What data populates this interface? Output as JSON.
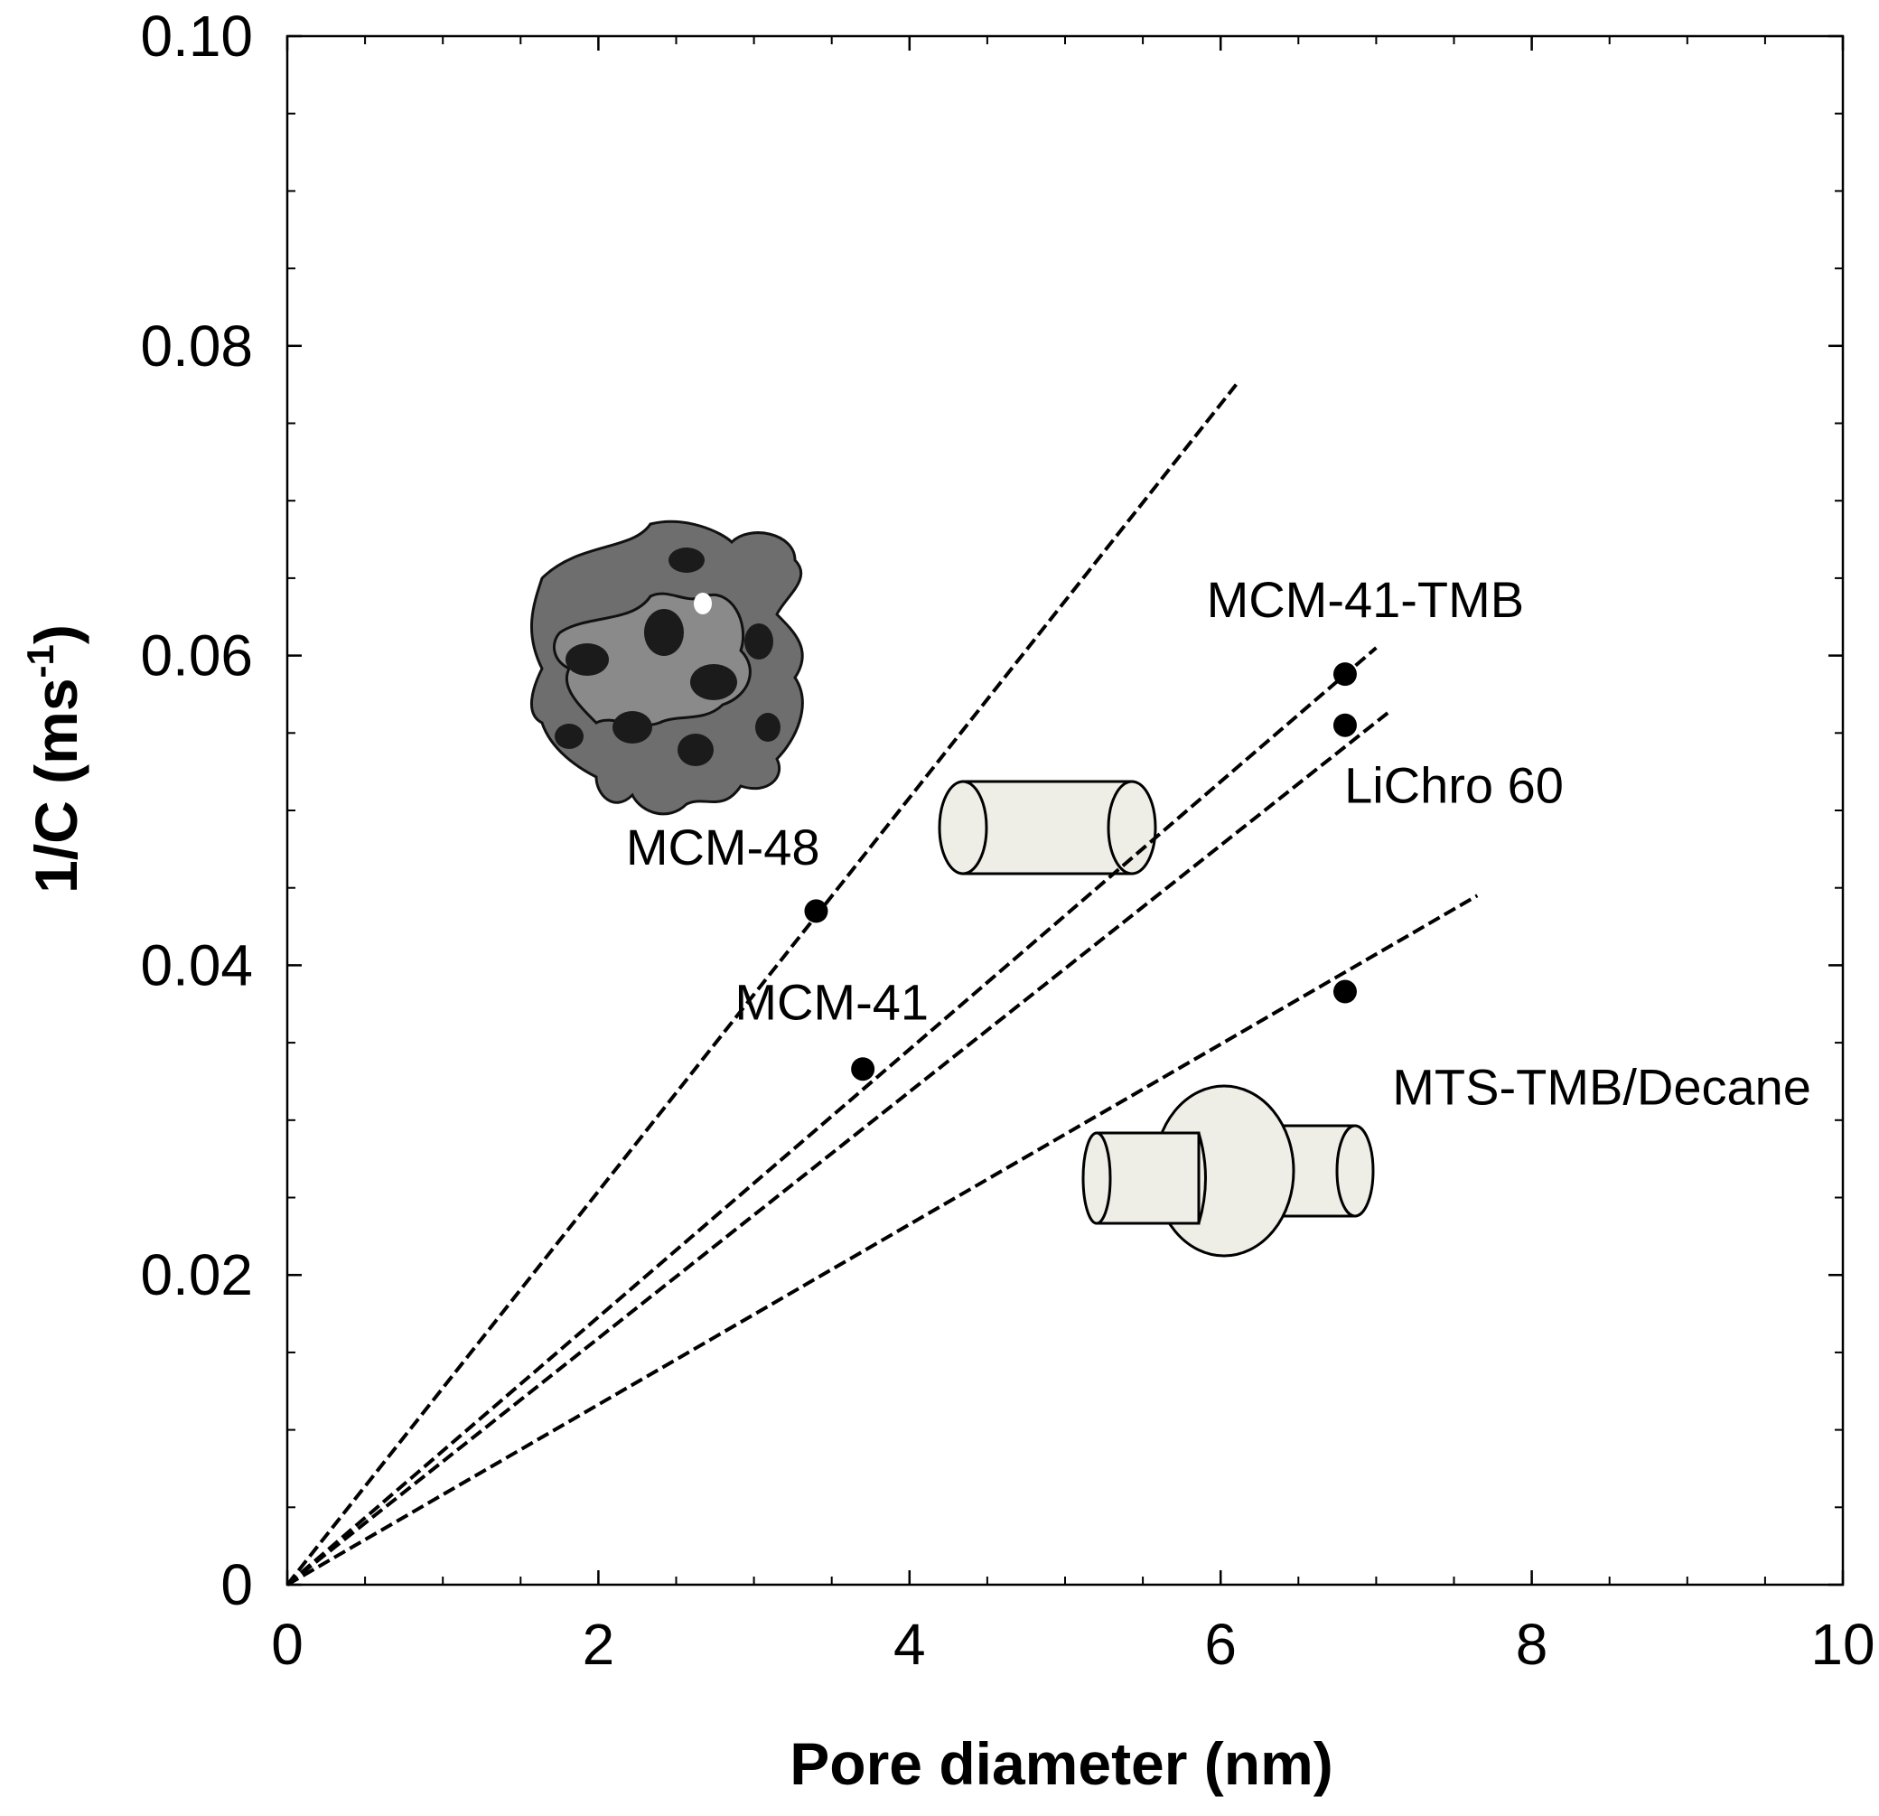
{
  "chart_data": {
    "type": "scatter",
    "xlabel": "Pore diameter (nm)",
    "ylabel": {
      "main": "1/C (ms",
      "superscript": "-1",
      "close": ")"
    },
    "xlim": [
      0,
      10
    ],
    "ylim": [
      0,
      0.1
    ],
    "x_ticks": [
      {
        "value": 0,
        "label": "0"
      },
      {
        "value": 2,
        "label": "2"
      },
      {
        "value": 4,
        "label": "4"
      },
      {
        "value": 6,
        "label": "6"
      },
      {
        "value": 8,
        "label": "8"
      },
      {
        "value": 10,
        "label": "10"
      }
    ],
    "y_ticks": [
      {
        "value": 0,
        "label": "0"
      },
      {
        "value": 0.02,
        "label": "0.02"
      },
      {
        "value": 0.04,
        "label": "0.04"
      },
      {
        "value": 0.06,
        "label": "0.06"
      },
      {
        "value": 0.08,
        "label": "0.08"
      },
      {
        "value": 0.1,
        "label": "0.10"
      }
    ],
    "x_minor_step": 0.5,
    "y_minor_step": 0.005,
    "grid": false,
    "points": [
      {
        "x": 3.4,
        "y": 0.0435
      },
      {
        "x": 3.7,
        "y": 0.0333
      },
      {
        "x": 6.8,
        "y": 0.0588
      },
      {
        "x": 6.8,
        "y": 0.0555
      },
      {
        "x": 6.8,
        "y": 0.0383
      }
    ],
    "fit_lines": [
      {
        "x": [
          0,
          6.1
        ],
        "y": [
          0,
          0.0775
        ]
      },
      {
        "x": [
          0,
          7.0
        ],
        "y": [
          0,
          0.0605
        ]
      },
      {
        "x": [
          0,
          7.1
        ],
        "y": [
          0,
          0.0565
        ]
      },
      {
        "x": [
          0,
          7.65
        ],
        "y": [
          0,
          0.0445
        ]
      }
    ],
    "annotations": [
      {
        "text": "MCM-41-TMB",
        "x": 6.93,
        "y": 0.0625
      },
      {
        "text": "LiChro 60",
        "x": 7.5,
        "y": 0.0505
      },
      {
        "text": "MCM-48",
        "x": 2.8,
        "y": 0.0465
      },
      {
        "text": "MCM-41",
        "x": 3.5,
        "y": 0.0365
      },
      {
        "text": "MTS-TMB/Decane",
        "x": 8.45,
        "y": 0.031
      }
    ],
    "illustrations": [
      {
        "name": "mcm48-gyroid-structure-icon",
        "depicts": "MCM-48 gyroid pore network"
      },
      {
        "name": "cylinder-pore-icon",
        "depicts": "cylindrical pore",
        "fill": "#efeee6"
      },
      {
        "name": "cage-pore-icon",
        "depicts": "cylinders joined by spherical cage",
        "fill": "#efeee6"
      }
    ],
    "colors": {
      "line": "#000000",
      "marker": "#000000",
      "illustration_fill": "#efeee6",
      "illustration_dark": "#555555"
    }
  }
}
